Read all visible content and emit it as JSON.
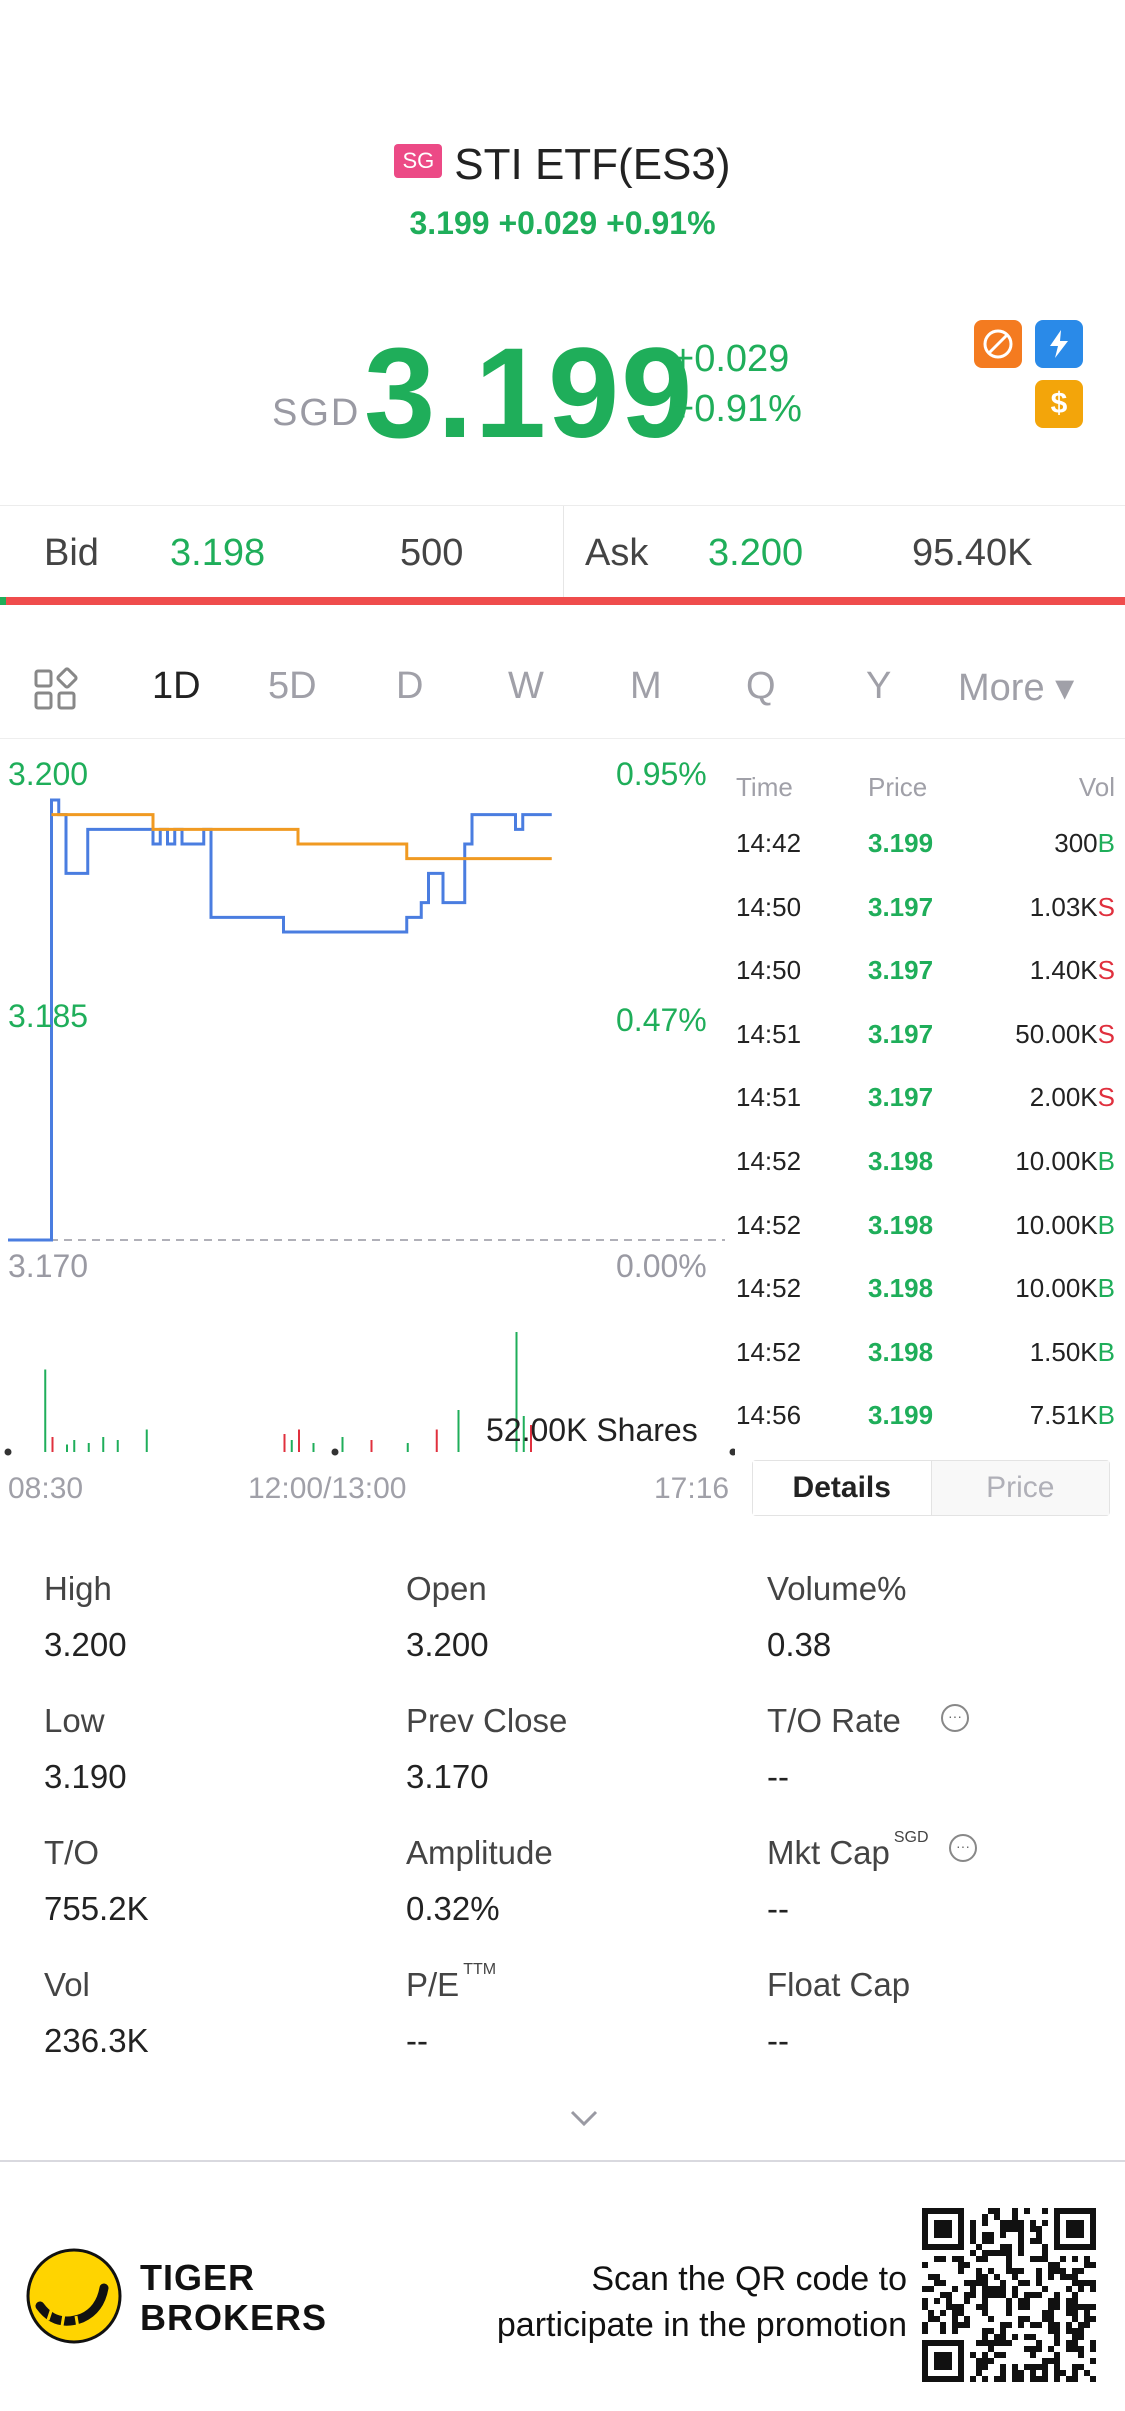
{
  "header": {
    "badge": "SG",
    "title": "STI ETF(ES3)",
    "subtitle": "3.199 +0.029 +0.91%"
  },
  "quote": {
    "currency": "SGD",
    "price": "3.199",
    "change": "+0.029",
    "change_pct": "+0.91%"
  },
  "bidask": {
    "bid_label": "Bid",
    "bid_price": "3.198",
    "bid_size": "500",
    "ask_label": "Ask",
    "ask_price": "3.200",
    "ask_size": "95.40K"
  },
  "tabs": [
    {
      "label": "1D"
    },
    {
      "label": "5D"
    },
    {
      "label": "D"
    },
    {
      "label": "W"
    },
    {
      "label": "M"
    },
    {
      "label": "Q"
    },
    {
      "label": "Y"
    },
    {
      "label": "More ▾"
    }
  ],
  "chart": {
    "y_top": "3.200",
    "y_mid": "3.185",
    "y_bot": "3.170",
    "pct_top": "0.95%",
    "pct_mid": "0.47%",
    "pct_bot": "0.00%",
    "volume_label": "52.00K Shares",
    "time_start": "08:30",
    "time_mid": "12:00/13:00",
    "time_end": "17:16"
  },
  "chart_data": {
    "type": "line",
    "ylim": [
      3.17,
      3.2
    ],
    "series": [
      {
        "x": [
          0,
          0.05,
          0.06,
          0.07,
          0.08,
          0.1,
          0.11,
          0.12,
          0.13,
          0.2,
          0.21,
          0.22,
          0.23,
          0.24,
          0.27,
          0.28,
          0.29,
          0.3,
          0.36,
          0.37,
          0.38,
          0.52,
          0.54,
          0.55,
          0.56,
          0.57,
          0.58,
          0.6,
          0.62,
          0.63,
          0.64,
          0.65,
          0.69,
          0.7,
          0.71,
          0.72,
          0.73,
          0.75
        ],
        "values": [
          3.17,
          3.17,
          3.2,
          3.199,
          3.195,
          3.195,
          3.198,
          3.198,
          3.198,
          3.197,
          3.198,
          3.197,
          3.198,
          3.197,
          3.198,
          3.192,
          3.192,
          3.192,
          3.192,
          3.192,
          3.191,
          3.191,
          3.191,
          3.192,
          3.192,
          3.193,
          3.195,
          3.193,
          3.193,
          3.197,
          3.199,
          3.199,
          3.199,
          3.198,
          3.199,
          3.199,
          3.199,
          3.199
        ]
      },
      {
        "x": [
          0.06,
          0.1,
          0.2,
          0.3,
          0.36,
          0.4,
          0.42,
          0.45,
          0.5,
          0.55,
          0.58,
          0.6,
          0.62,
          0.64,
          0.7,
          0.72,
          0.75
        ],
        "values": [
          3.199,
          3.199,
          3.198,
          3.198,
          3.198,
          3.197,
          3.197,
          3.197,
          3.197,
          3.196,
          3.196,
          3.196,
          3.196,
          3.196,
          3.196,
          3.196,
          3.196
        ]
      }
    ]
  },
  "ticks": {
    "headers": {
      "time": "Time",
      "price": "Price",
      "vol": "Vol"
    },
    "rows": [
      {
        "time": "14:42",
        "price": "3.199",
        "vol": "300",
        "side": "B"
      },
      {
        "time": "14:50",
        "price": "3.197",
        "vol": "1.03K",
        "side": "S"
      },
      {
        "time": "14:50",
        "price": "3.197",
        "vol": "1.40K",
        "side": "S"
      },
      {
        "time": "14:51",
        "price": "3.197",
        "vol": "50.00K",
        "side": "S"
      },
      {
        "time": "14:51",
        "price": "3.197",
        "vol": "2.00K",
        "side": "S"
      },
      {
        "time": "14:52",
        "price": "3.198",
        "vol": "10.00K",
        "side": "B"
      },
      {
        "time": "14:52",
        "price": "3.198",
        "vol": "10.00K",
        "side": "B"
      },
      {
        "time": "14:52",
        "price": "3.198",
        "vol": "10.00K",
        "side": "B"
      },
      {
        "time": "14:52",
        "price": "3.198",
        "vol": "1.50K",
        "side": "B"
      },
      {
        "time": "14:56",
        "price": "3.199",
        "vol": "7.51K",
        "side": "B"
      }
    ]
  },
  "segment": {
    "details": "Details",
    "price": "Price"
  },
  "stats": [
    {
      "label": "High",
      "value": "3.200"
    },
    {
      "label": "Open",
      "value": "3.200"
    },
    {
      "label": "Volume%",
      "value": "0.38"
    },
    {
      "label": "Low",
      "value": "3.190"
    },
    {
      "label": "Prev Close",
      "value": "3.170"
    },
    {
      "label": "T/O Rate",
      "value": "--"
    },
    {
      "label": "T/O",
      "value": "755.2K"
    },
    {
      "label": "Amplitude",
      "value": "0.32%"
    },
    {
      "label": "Mkt Cap",
      "value": "--",
      "sup": "SGD"
    },
    {
      "label": "Vol",
      "value": "236.3K"
    },
    {
      "label": "P/E",
      "value": "--",
      "sup": "TTM"
    },
    {
      "label": "Float Cap",
      "value": "--"
    }
  ],
  "footer": {
    "brand_line1": "TIGER",
    "brand_line2": "BROKERS",
    "promo_line1": "Scan the QR code to",
    "promo_line2": "participate in the promotion"
  },
  "colors": {
    "up": "#1fae5a",
    "down": "#e0303e",
    "price_line": "#4a7de0",
    "avg_line": "#f09a22"
  }
}
